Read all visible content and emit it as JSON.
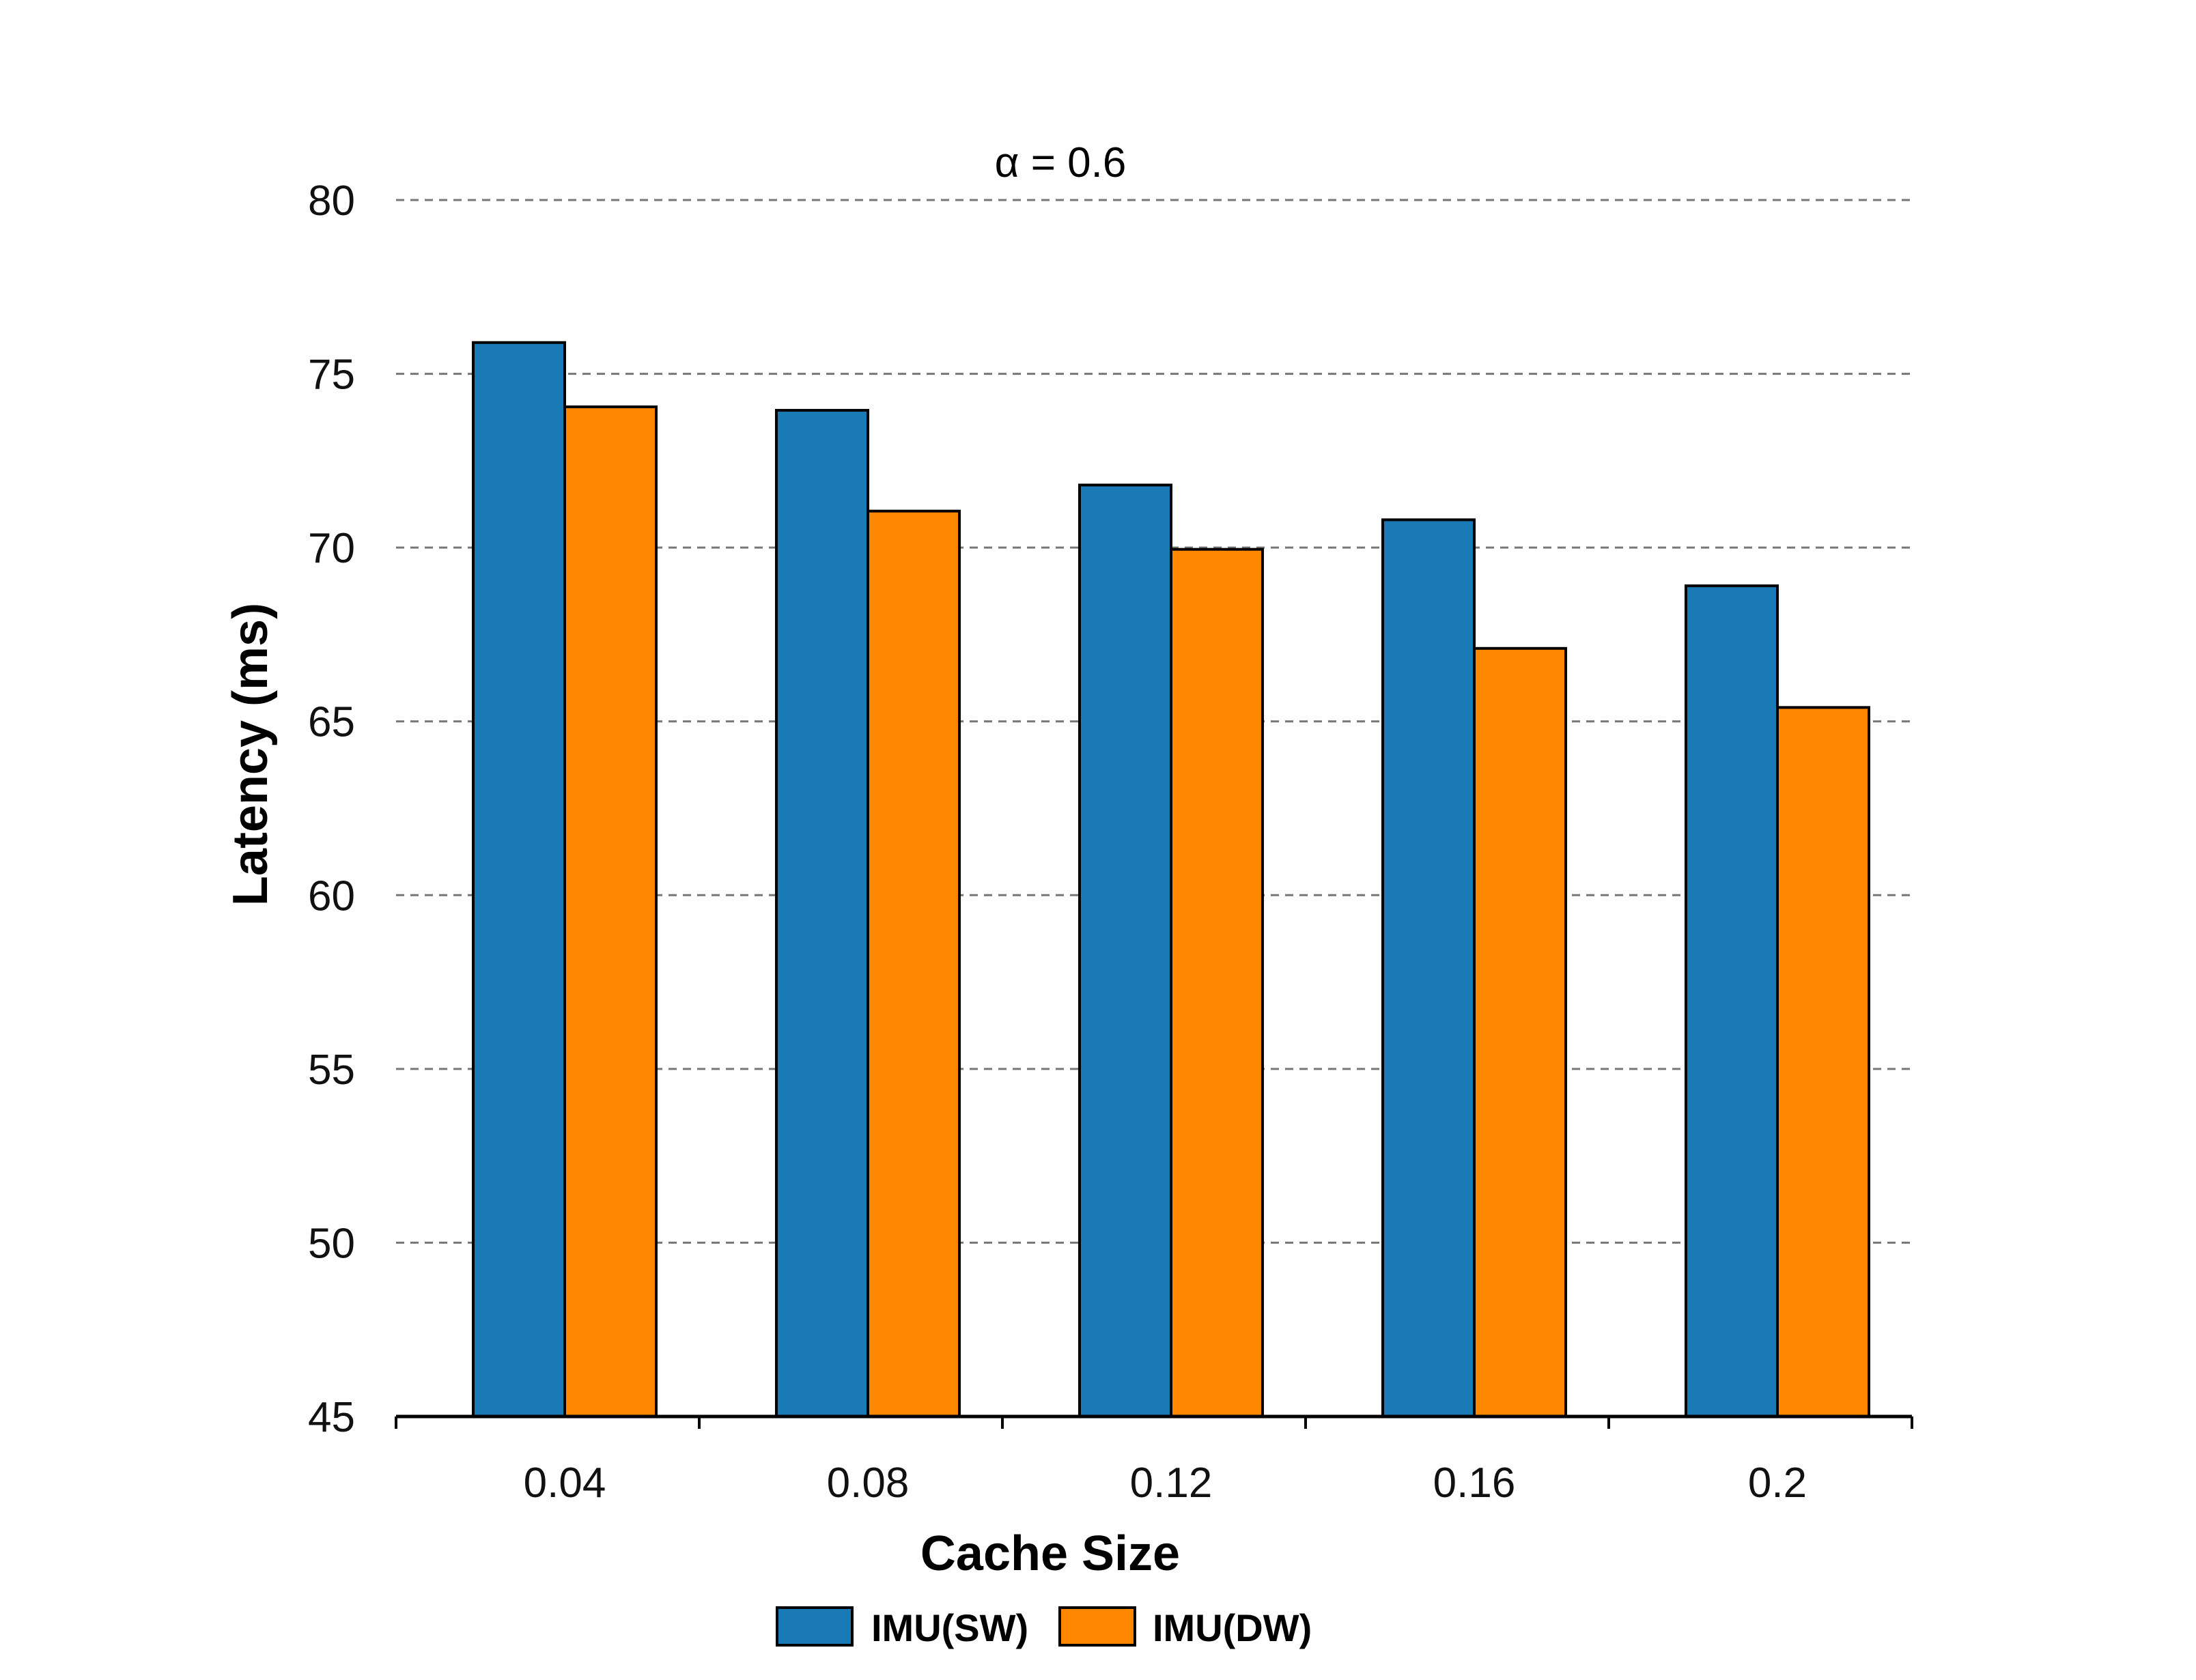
{
  "chart_data": {
    "type": "bar",
    "subtitle": "α = 0.6",
    "xlabel": "Cache Size",
    "ylabel": "Latency (ms)",
    "categories": [
      "0.04",
      "0.08",
      "0.12",
      "0.16",
      "0.2"
    ],
    "series": [
      {
        "name": "IMU(SW)",
        "color": "#1a7ab5",
        "values": [
          75.9,
          73.95,
          71.8,
          70.8,
          68.9
        ]
      },
      {
        "name": "IMU(DW)",
        "color": "#ff8800",
        "values": [
          74.05,
          71.05,
          69.95,
          67.1,
          65.4
        ]
      }
    ],
    "ylim": [
      45,
      80
    ],
    "yticks": [
      45,
      50,
      55,
      60,
      65,
      70,
      75,
      80
    ],
    "grid": true,
    "legend": "bottom-center"
  }
}
